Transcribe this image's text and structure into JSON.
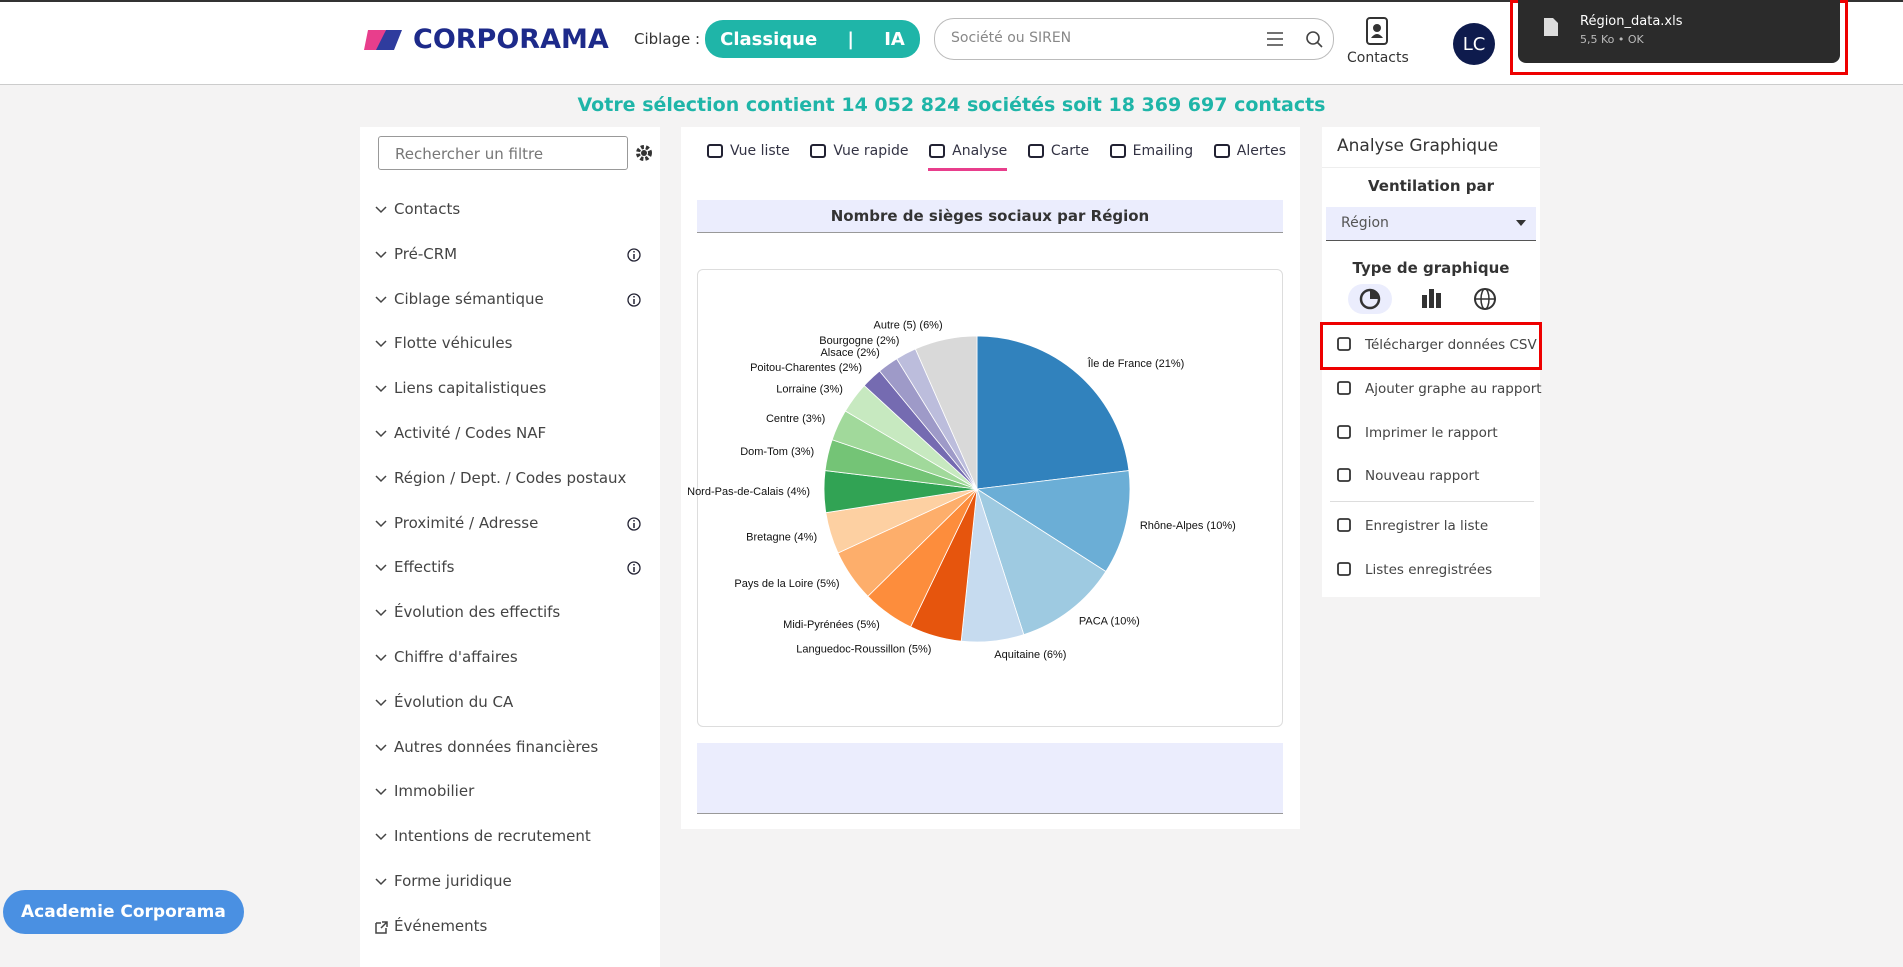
{
  "header": {
    "logo": "CORPORAMA",
    "ciblage_label": "Ciblage :",
    "classique": "Classique",
    "separator": "|",
    "ia": "IA",
    "search_placeholder": "Société ou SIREN",
    "contacts": "Contacts",
    "avatar": "LC"
  },
  "download": {
    "filename": "Région_data.xls",
    "meta": "5,5 Ko • OK"
  },
  "selection_banner": "Votre sélection contient 14 052 824 sociétés soit 18 369 697 contacts",
  "sidebar": {
    "search_placeholder": "Rechercher un filtre",
    "filters": [
      "Contacts",
      "Pré-CRM",
      "Ciblage sémantique",
      "Flotte véhicules",
      "Liens capitalistiques",
      "Activité / Codes NAF",
      "Région / Dept. / Codes postaux",
      "Proximité / Adresse",
      "Effectifs",
      "Évolution des effectifs",
      "Chiffre d'affaires",
      "Évolution du CA",
      "Autres données financières",
      "Immobilier",
      "Intentions de recrutement",
      "Forme juridique",
      "Événements"
    ]
  },
  "tabs": [
    "Vue liste",
    "Vue rapide",
    "Analyse",
    "Carte",
    "Emailing",
    "Alertes"
  ],
  "chart_data": {
    "type": "pie",
    "title": "Nombre de sièges sociaux par Région",
    "categories": [
      "Île de France",
      "Rhône-Alpes",
      "PACA",
      "Aquitaine",
      "Languedoc-Roussillon",
      "Midi-Pyrénées",
      "Pays de la Loire",
      "Bretagne",
      "Nord-Pas-de-Calais",
      "Dom-Tom",
      "Centre",
      "Lorraine",
      "Poitou-Charentes",
      "Alsace",
      "Bourgogne",
      "Autre (5)"
    ],
    "values": [
      21,
      10,
      10,
      6,
      5,
      5,
      5,
      4,
      4,
      3,
      3,
      3,
      2,
      2,
      2,
      6
    ],
    "value_labels": [
      "(21%)",
      "(10%)",
      "(10%)",
      "(6%)",
      "(5%)",
      "(5%)",
      "(5%)",
      "(4%)",
      "(4%)",
      "(3%)",
      "(3%)",
      "(3%)",
      "(2%)",
      "(2%)",
      "(2%)",
      "(6%)"
    ],
    "colors": [
      "#3182bd",
      "#6baed6",
      "#9ecae1",
      "#c6dbef",
      "#e6550d",
      "#fd8d3c",
      "#fdae6b",
      "#fdd0a2",
      "#31a354",
      "#74c476",
      "#a1d99b",
      "#c7e9c0",
      "#756bb1",
      "#9e9ac8",
      "#bcbddc",
      "#d9d9d9"
    ]
  },
  "right_panel": {
    "title": "Analyse Graphique",
    "ventilation_label": "Ventilation par",
    "ventilation_value": "Région",
    "type_label": "Type de graphique",
    "actions": [
      "Télécharger données CSV",
      "Ajouter graphe au rapport",
      "Imprimer le rapport",
      "Nouveau rapport",
      "Enregistrer la liste",
      "Listes enregistrées"
    ]
  },
  "academie": "Academie Corporama"
}
